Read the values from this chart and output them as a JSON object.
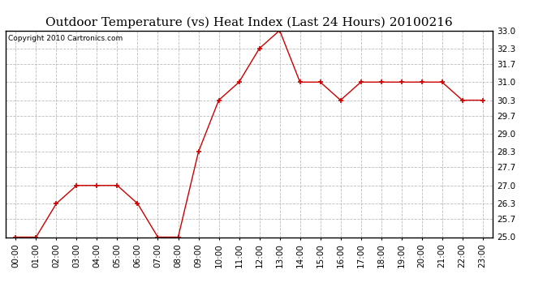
{
  "title": "Outdoor Temperature (vs) Heat Index (Last 24 Hours) 20100216",
  "copyright": "Copyright 2010 Cartronics.com",
  "x_labels": [
    "00:00",
    "01:00",
    "02:00",
    "03:00",
    "04:00",
    "05:00",
    "06:00",
    "07:00",
    "08:00",
    "09:00",
    "10:00",
    "11:00",
    "12:00",
    "13:00",
    "14:00",
    "15:00",
    "16:00",
    "17:00",
    "18:00",
    "19:00",
    "20:00",
    "21:00",
    "22:00",
    "23:00"
  ],
  "y_values": [
    25.0,
    25.0,
    26.3,
    27.0,
    27.0,
    27.0,
    26.3,
    25.0,
    25.0,
    28.3,
    30.3,
    31.0,
    32.3,
    33.0,
    31.0,
    31.0,
    30.3,
    31.0,
    31.0,
    31.0,
    31.0,
    31.0,
    30.3,
    30.3
  ],
  "line_color": "#cc0000",
  "marker": "+",
  "marker_size": 5,
  "marker_color": "#cc0000",
  "ylim_min": 25.0,
  "ylim_max": 33.0,
  "y_ticks": [
    25.0,
    25.7,
    26.3,
    27.0,
    27.7,
    28.3,
    29.0,
    29.7,
    30.3,
    31.0,
    31.7,
    32.3,
    33.0
  ],
  "grid_color": "#bbbbbb",
  "grid_style": "--",
  "bg_color": "#ffffff",
  "title_fontsize": 11,
  "tick_fontsize": 7.5,
  "copyright_fontsize": 6.5
}
